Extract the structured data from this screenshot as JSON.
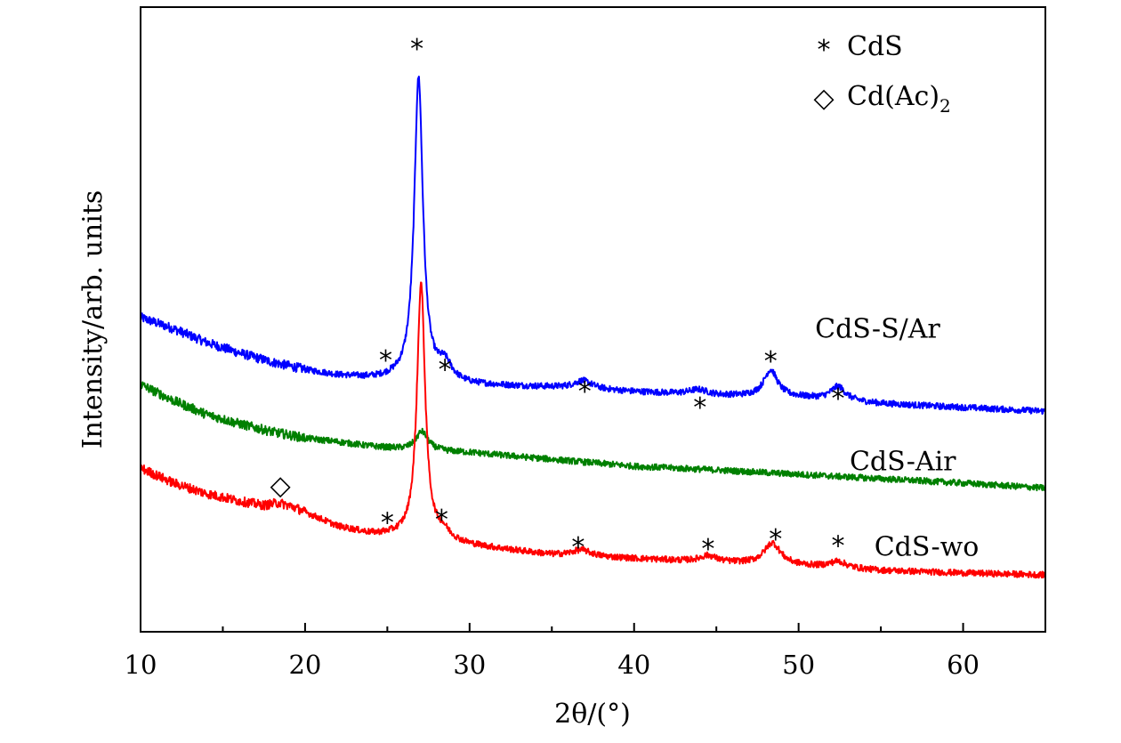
{
  "chart_data": {
    "type": "line",
    "xlabel": "2θ/(°)",
    "ylabel": "Intensity/arb. units",
    "xlim": [
      10,
      65
    ],
    "ylim": [
      0,
      100
    ],
    "x_ticks": [
      "10",
      "20",
      "30",
      "40",
      "50",
      "60"
    ],
    "y_ticks_shown": false,
    "grid": false,
    "legend": {
      "placement": "top-right",
      "entries": [
        {
          "symbol": "*",
          "text": "CdS",
          "icon": "asterisk-icon"
        },
        {
          "symbol": "◇",
          "text": "Cd(Ac)",
          "sub": "2",
          "icon": "diamond-icon"
        }
      ]
    },
    "series": [
      {
        "name": "CdS-S/Ar",
        "color": "#0000ff",
        "baseline": [
          [
            10,
            50.3
          ],
          [
            12,
            48.5
          ],
          [
            14,
            46.3
          ],
          [
            16,
            44.6
          ],
          [
            18,
            43.1
          ],
          [
            20,
            41.9
          ],
          [
            22,
            41.0
          ],
          [
            24,
            40.5
          ],
          [
            25.5,
            40.4
          ],
          [
            30,
            39.5
          ],
          [
            35,
            39.1
          ],
          [
            40,
            38.4
          ],
          [
            45,
            37.8
          ],
          [
            50,
            37.5
          ],
          [
            55,
            36.5
          ],
          [
            60,
            35.9
          ],
          [
            65,
            35.3
          ]
        ],
        "peaks": [
          {
            "x": 26.9,
            "height": 48.5,
            "width": 0.32
          },
          {
            "x": 28.5,
            "height": 2.7,
            "width": 0.5
          },
          {
            "x": 36.9,
            "height": 1.3,
            "width": 0.7
          },
          {
            "x": 43.9,
            "height": 0.8,
            "width": 0.7
          },
          {
            "x": 48.3,
            "height": 4.3,
            "width": 0.5
          },
          {
            "x": 52.4,
            "height": 2.2,
            "width": 0.55
          }
        ],
        "noise": 0.5
      },
      {
        "name": "CdS-Air",
        "color": "#008000",
        "baseline": [
          [
            10,
            39.6
          ],
          [
            12,
            37.0
          ],
          [
            14,
            34.8
          ],
          [
            16,
            33.3
          ],
          [
            18,
            32.0
          ],
          [
            20,
            31.0
          ],
          [
            22,
            30.4
          ],
          [
            24,
            29.7
          ],
          [
            26,
            29.2
          ],
          [
            30,
            28.7
          ],
          [
            35,
            27.6
          ],
          [
            40,
            26.5
          ],
          [
            45,
            25.9
          ],
          [
            50,
            25.2
          ],
          [
            55,
            24.5
          ],
          [
            60,
            23.8
          ],
          [
            65,
            23.0
          ]
        ],
        "peaks": [
          {
            "x": 27.1,
            "height": 3.0,
            "width": 0.45
          }
        ],
        "noise": 0.5
      },
      {
        "name": "CdS-wo",
        "color": "#ff0000",
        "baseline": [
          [
            10,
            26.2
          ],
          [
            12,
            23.8
          ],
          [
            14,
            22.1
          ],
          [
            16,
            20.9
          ],
          [
            17.5,
            20.2
          ],
          [
            18.4,
            20.6
          ],
          [
            19.3,
            19.9
          ],
          [
            20,
            19.1
          ],
          [
            22,
            16.8
          ],
          [
            24,
            15.6
          ],
          [
            26,
            15.2
          ],
          [
            28.5,
            14.4
          ],
          [
            30,
            13.8
          ],
          [
            35,
            12.3
          ],
          [
            40,
            11.7
          ],
          [
            45,
            11.1
          ],
          [
            48.4,
            10.8
          ],
          [
            52,
            10.3
          ],
          [
            55,
            9.8
          ],
          [
            60,
            9.4
          ],
          [
            65,
            9.1
          ]
        ],
        "peaks": [
          {
            "x": 27.05,
            "height": 40.8,
            "width": 0.3
          },
          {
            "x": 28.4,
            "height": 1.2,
            "width": 0.5
          },
          {
            "x": 36.8,
            "height": 1.0,
            "width": 0.7
          },
          {
            "x": 44.5,
            "height": 1.0,
            "width": 0.6
          },
          {
            "x": 48.4,
            "height": 3.4,
            "width": 0.6
          },
          {
            "x": 52.4,
            "height": 1.0,
            "width": 0.6
          }
        ],
        "noise": 0.5
      }
    ],
    "series_labels": [
      {
        "text": "CdS-S/Ar",
        "x": 51,
        "y": 48.5
      },
      {
        "text": "CdS-Air",
        "x": 53.1,
        "y": 27.3
      },
      {
        "text": "CdS-wo",
        "x": 54.6,
        "y": 13.6
      }
    ],
    "annotations": [
      {
        "symbol": "*",
        "x": 26.8,
        "y": 93.9
      },
      {
        "symbol": "*",
        "x": 24.9,
        "y": 44.0
      },
      {
        "symbol": "*",
        "x": 28.5,
        "y": 42.5
      },
      {
        "symbol": "*",
        "x": 37.0,
        "y": 39.0
      },
      {
        "symbol": "*",
        "x": 44.0,
        "y": 36.5
      },
      {
        "symbol": "*",
        "x": 48.3,
        "y": 43.9
      },
      {
        "symbol": "*",
        "x": 52.4,
        "y": 37.9
      },
      {
        "symbol": "◇",
        "x": 18.5,
        "y": 23.7
      },
      {
        "symbol": "*",
        "x": 25.0,
        "y": 18.0
      },
      {
        "symbol": "*",
        "x": 28.3,
        "y": 18.5
      },
      {
        "symbol": "*",
        "x": 36.6,
        "y": 14.1
      },
      {
        "symbol": "*",
        "x": 44.5,
        "y": 13.8
      },
      {
        "symbol": "*",
        "x": 48.6,
        "y": 15.4
      },
      {
        "symbol": "*",
        "x": 52.4,
        "y": 14.3
      }
    ]
  }
}
